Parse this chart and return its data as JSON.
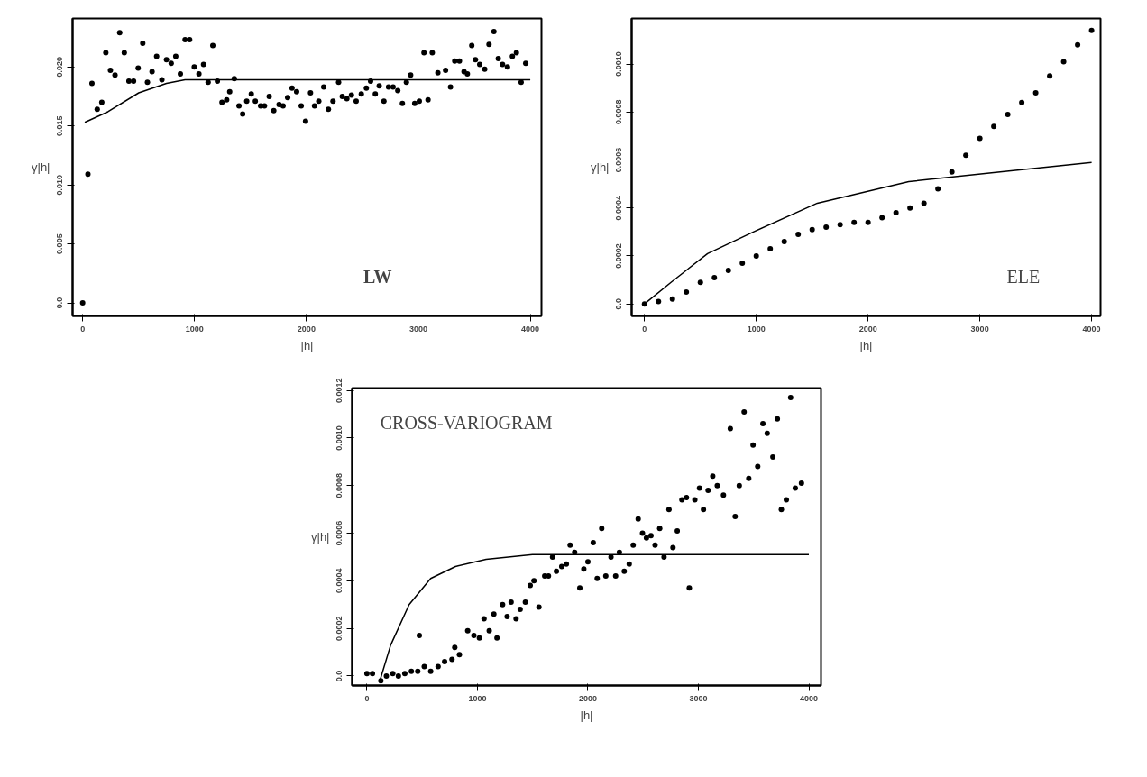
{
  "chart_data": [
    {
      "type": "scatter",
      "title": "LW",
      "xlabel": "|h|",
      "ylabel": "γ|h|",
      "xlim": [
        -90,
        4100
      ],
      "ylim": [
        -0.0011,
        0.0241
      ],
      "xticks": [
        0,
        1000,
        2000,
        3000,
        4000
      ],
      "yticks": [
        {
          "value": 0,
          "label": "0.0"
        },
        0.005,
        {
          "value": 0.01,
          "label": "0.010"
        },
        0.015,
        {
          "value": 0.02,
          "label": "0.020"
        }
      ],
      "series": [
        {
          "type": "scatter",
          "marker": "circle",
          "color": "#000000",
          "x": [
            0,
            47,
            83,
            130,
            171,
            207,
            248,
            289,
            331,
            372,
            413,
            455,
            496,
            537,
            579,
            620,
            661,
            708,
            749,
            791,
            832,
            873,
            915,
            956,
            997,
            1039,
            1080,
            1121,
            1163,
            1204,
            1245,
            1287,
            1314,
            1355,
            1397,
            1430,
            1466,
            1507,
            1543,
            1590,
            1625,
            1667,
            1708,
            1755,
            1791,
            1832,
            1871,
            1912,
            1953,
            1992,
            2036,
            2072,
            2110,
            2154,
            2196,
            2237,
            2287,
            2320,
            2361,
            2402,
            2444,
            2490,
            2535,
            2573,
            2615,
            2650,
            2692,
            2733,
            2774,
            2816,
            2857,
            2893,
            2931,
            2967,
            3008,
            3050,
            3086,
            3124,
            3174,
            3243,
            3287,
            3325,
            3367,
            3408,
            3438,
            3477,
            3510,
            3548,
            3593,
            3631,
            3675,
            3714,
            3752,
            3796,
            3840,
            3876,
            3918,
            3959
          ],
          "values": [
            0,
            0.0109,
            0.0186,
            0.0164,
            0.017,
            0.0212,
            0.0197,
            0.0193,
            0.0229,
            0.0212,
            0.0188,
            0.0188,
            0.0199,
            0.022,
            0.0187,
            0.0196,
            0.0209,
            0.0189,
            0.0206,
            0.0203,
            0.0209,
            0.0194,
            0.0223,
            0.0223,
            0.02,
            0.0194,
            0.0202,
            0.0187,
            0.0218,
            0.0188,
            0.017,
            0.0172,
            0.0179,
            0.019,
            0.0167,
            0.016,
            0.0171,
            0.0177,
            0.0171,
            0.0167,
            0.0167,
            0.0175,
            0.0163,
            0.0168,
            0.0167,
            0.0174,
            0.0182,
            0.0179,
            0.0167,
            0.0154,
            0.0178,
            0.0167,
            0.0171,
            0.0183,
            0.0164,
            0.0171,
            0.0187,
            0.0175,
            0.0173,
            0.0176,
            0.0171,
            0.0177,
            0.0182,
            0.0188,
            0.0177,
            0.0184,
            0.0171,
            0.0183,
            0.0183,
            0.018,
            0.0169,
            0.0187,
            0.0193,
            0.0169,
            0.0171,
            0.0212,
            0.0172,
            0.0212,
            0.0195,
            0.0197,
            0.0183,
            0.0205,
            0.0205,
            0.0196,
            0.0194,
            0.0218,
            0.0206,
            0.0202,
            0.0198,
            0.0219,
            0.023,
            0.0207,
            0.0202,
            0.02,
            0.0209,
            0.0212,
            0.0187,
            0.0203
          ]
        },
        {
          "type": "line",
          "color": "#000000",
          "x": [
            19,
            226,
            501,
            749,
            915,
            997,
            4000
          ],
          "values": [
            0.0153,
            0.0162,
            0.0178,
            0.0186,
            0.0189,
            0.0189,
            0.0189
          ]
        }
      ]
    },
    {
      "type": "scatter",
      "title": "ELE",
      "xlabel": "|h|",
      "ylabel": "γ|h|",
      "xlim": [
        -115,
        4080
      ],
      "ylim": [
        -5e-05,
        0.00119
      ],
      "xticks": [
        0,
        1000,
        2000,
        3000,
        4000
      ],
      "yticks": [
        {
          "value": 0,
          "label": "0.0"
        },
        0.0002,
        0.0004,
        0.0006,
        0.0008,
        {
          "value": 0.001,
          "label": "0.0010"
        }
      ],
      "series": [
        {
          "type": "scatter",
          "marker": "circle",
          "color": "#000000",
          "x": [
            0,
            125,
            250,
            375,
            500,
            625,
            750,
            875,
            1000,
            1125,
            1250,
            1375,
            1500,
            1625,
            1750,
            1875,
            2000,
            2125,
            2250,
            2375,
            2500,
            2625,
            2750,
            2875,
            3000,
            3125,
            3250,
            3375,
            3500,
            3625,
            3750,
            3875,
            4000
          ],
          "values": [
            0,
            1e-05,
            2e-05,
            5e-05,
            9e-05,
            0.00011,
            0.00014,
            0.00017,
            0.0002,
            0.00023,
            0.00026,
            0.00029,
            0.00031,
            0.00032,
            0.00033,
            0.00034,
            0.00034,
            0.00036,
            0.00038,
            0.0004,
            0.00042,
            0.00048,
            0.00055,
            0.00062,
            0.00069,
            0.00074,
            0.00079,
            0.00084,
            0.00088,
            0.00095,
            0.00101,
            0.00108,
            0.00114
          ]
        },
        {
          "type": "line",
          "color": "#000000",
          "x": [
            0,
            237,
            564,
            973,
            1546,
            2364,
            3182,
            4000
          ],
          "values": [
            0,
            9e-05,
            0.00021,
            0.0003,
            0.00042,
            0.00051,
            0.00055,
            0.00059
          ]
        }
      ]
    },
    {
      "type": "scatter",
      "title": "CROSS-VARIOGRAM",
      "xlabel": "|h|",
      "ylabel": "γ|h|",
      "xlim": [
        -134,
        4110
      ],
      "ylim": [
        -4e-05,
        0.00121
      ],
      "xticks": [
        0,
        1000,
        2000,
        3000,
        4000
      ],
      "yticks": [
        {
          "value": 0,
          "label": "0.0"
        },
        0.0002,
        0.0004,
        0.0006,
        0.0008,
        {
          "value": 0.001,
          "label": "0.0010"
        },
        0.0012
      ],
      "series": [
        {
          "type": "scatter",
          "marker": "circle",
          "color": "#000000",
          "x": [
            0,
            50,
            126,
            176,
            234,
            285,
            343,
            402,
            460,
            474,
            519,
            577,
            644,
            703,
            770,
            795,
            837,
            912,
            968,
            1018,
            1060,
            1107,
            1149,
            1177,
            1228,
            1269,
            1305,
            1350,
            1387,
            1434,
            1478,
            1512,
            1557,
            1609,
            1643,
            1680,
            1715,
            1763,
            1805,
            1839,
            1880,
            1927,
            1963,
            2000,
            2048,
            2084,
            2125,
            2162,
            2209,
            2251,
            2285,
            2329,
            2374,
            2410,
            2455,
            2494,
            2530,
            2571,
            2608,
            2650,
            2689,
            2734,
            2770,
            2809,
            2851,
            2893,
            2918,
            2968,
            3010,
            3046,
            3088,
            3130,
            3171,
            3227,
            3289,
            3333,
            3370,
            3414,
            3456,
            3495,
            3537,
            3584,
            3623,
            3674,
            3715,
            3751,
            3796,
            3835,
            3877,
            3933
          ],
          "values": [
            1e-05,
            1e-05,
            -2e-05,
            0,
            1e-05,
            0,
            1e-05,
            2e-05,
            2e-05,
            0.00017,
            4e-05,
            2e-05,
            4e-05,
            6e-05,
            7e-05,
            0.00012,
            9e-05,
            0.00019,
            0.00017,
            0.00016,
            0.00024,
            0.00019,
            0.00026,
            0.00016,
            0.0003,
            0.00025,
            0.00031,
            0.00024,
            0.00028,
            0.00031,
            0.00038,
            0.0004,
            0.00029,
            0.00042,
            0.00042,
            0.0005,
            0.00044,
            0.00046,
            0.00047,
            0.00055,
            0.00052,
            0.00037,
            0.00045,
            0.00048,
            0.00056,
            0.00041,
            0.00062,
            0.00042,
            0.0005,
            0.00042,
            0.00052,
            0.00044,
            0.00047,
            0.00055,
            0.00066,
            0.0006,
            0.00058,
            0.00059,
            0.00055,
            0.00062,
            0.0005,
            0.0007,
            0.00054,
            0.00061,
            0.00074,
            0.00075,
            0.00037,
            0.00074,
            0.00079,
            0.0007,
            0.00078,
            0.00084,
            0.0008,
            0.00076,
            0.00104,
            0.00067,
            0.0008,
            0.00111,
            0.00083,
            0.00097,
            0.00088,
            0.00106,
            0.00102,
            0.00092,
            0.00108,
            0.0007,
            0.00074,
            0.00117,
            0.00079,
            0.00081
          ]
        },
        {
          "type": "line",
          "color": "#000000",
          "x": [
            117,
            215,
            382,
            577,
            801,
            1079,
            1498,
            4000
          ],
          "values": [
            -2e-05,
            0.00013,
            0.0003,
            0.00041,
            0.00046,
            0.00049,
            0.00051,
            0.00051
          ]
        }
      ]
    }
  ]
}
